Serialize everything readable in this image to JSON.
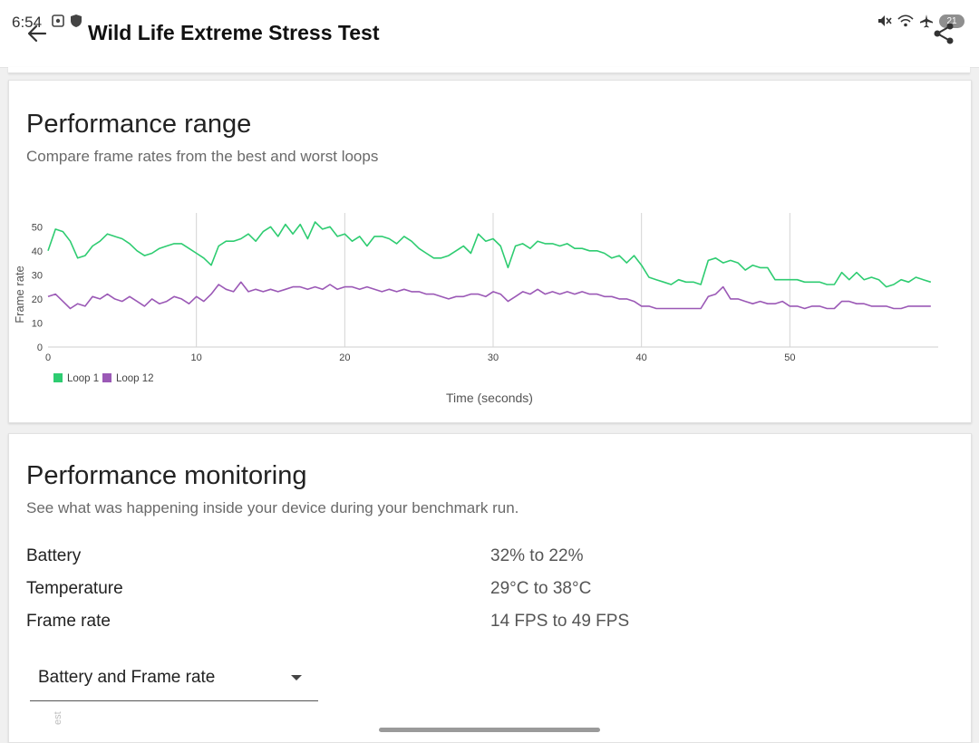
{
  "status_bar": {
    "time": "6:54",
    "battery": "21"
  },
  "app_bar": {
    "title": "Wild Life Extreme Stress Test"
  },
  "performance_range": {
    "title": "Performance range",
    "subtitle": "Compare frame rates from the best and worst loops"
  },
  "chart_data": {
    "type": "line",
    "xlabel": "Time (seconds)",
    "ylabel": "Frame rate",
    "xlim": [
      0,
      60
    ],
    "ylim": [
      0,
      55
    ],
    "x_ticks": [
      "0",
      "10",
      "20",
      "30",
      "40",
      "50"
    ],
    "y_ticks": [
      "0",
      "10",
      "20",
      "30",
      "40",
      "50"
    ],
    "grid": "vertical",
    "legend_position": "bottom-left",
    "series": [
      {
        "name": "Loop 1",
        "color": "#2ecc71",
        "x": [
          0,
          0.5,
          1,
          1.5,
          2,
          2.5,
          3,
          3.5,
          4,
          4.5,
          5,
          5.5,
          6,
          6.5,
          7,
          7.5,
          8,
          8.5,
          9,
          9.5,
          10,
          10.5,
          11,
          11.5,
          12,
          12.5,
          13,
          13.5,
          14,
          14.5,
          15,
          15.5,
          16,
          16.5,
          17,
          17.5,
          18,
          18.5,
          19,
          19.5,
          20,
          20.5,
          21,
          21.5,
          22,
          22.5,
          23,
          23.5,
          24,
          24.5,
          25,
          25.5,
          26,
          26.5,
          27,
          27.5,
          28,
          28.5,
          29,
          29.5,
          30,
          30.5,
          31,
          31.5,
          32,
          32.5,
          33,
          33.5,
          34,
          34.5,
          35,
          35.5,
          36,
          36.5,
          37,
          37.5,
          38,
          38.5,
          39,
          39.5,
          40,
          40.5,
          41,
          41.5,
          42,
          42.5,
          43,
          43.5,
          44,
          44.5,
          45,
          45.5,
          46,
          46.5,
          47,
          47.5,
          48,
          48.5,
          49,
          49.5,
          50,
          50.5,
          51,
          51.5,
          52,
          52.5,
          53,
          53.5,
          54,
          54.5,
          55,
          55.5,
          56,
          56.5,
          57,
          57.5,
          58,
          58.5,
          59,
          59.5
        ],
        "values": [
          40,
          49,
          48,
          44,
          37,
          38,
          42,
          44,
          47,
          46,
          45,
          43,
          40,
          38,
          39,
          41,
          42,
          43,
          43,
          41,
          39,
          37,
          34,
          42,
          44,
          44,
          45,
          47,
          44,
          48,
          50,
          46,
          51,
          47,
          51,
          45,
          52,
          49,
          50,
          46,
          47,
          44,
          46,
          42,
          46,
          46,
          45,
          43,
          46,
          44,
          41,
          39,
          37,
          37,
          38,
          40,
          42,
          39,
          47,
          44,
          45,
          42,
          33,
          42,
          43,
          41,
          44,
          43,
          43,
          42,
          43,
          41,
          41,
          40,
          40,
          39,
          37,
          38,
          35,
          38,
          34,
          29,
          28,
          27,
          26,
          28,
          27,
          27,
          26,
          36,
          37,
          35,
          36,
          35,
          32,
          34,
          33,
          33,
          28,
          28,
          28,
          28,
          27,
          27,
          27,
          26,
          26,
          31,
          28,
          31,
          28,
          29,
          28,
          25,
          26,
          28,
          27,
          29,
          28,
          27
        ],
        "note_max": 52
      },
      {
        "name": "Loop 12",
        "color": "#9b59b6",
        "x": [
          0,
          0.5,
          1,
          1.5,
          2,
          2.5,
          3,
          3.5,
          4,
          4.5,
          5,
          5.5,
          6,
          6.5,
          7,
          7.5,
          8,
          8.5,
          9,
          9.5,
          10,
          10.5,
          11,
          11.5,
          12,
          12.5,
          13,
          13.5,
          14,
          14.5,
          15,
          15.5,
          16,
          16.5,
          17,
          17.5,
          18,
          18.5,
          19,
          19.5,
          20,
          20.5,
          21,
          21.5,
          22,
          22.5,
          23,
          23.5,
          24,
          24.5,
          25,
          25.5,
          26,
          26.5,
          27,
          27.5,
          28,
          28.5,
          29,
          29.5,
          30,
          30.5,
          31,
          31.5,
          32,
          32.5,
          33,
          33.5,
          34,
          34.5,
          35,
          35.5,
          36,
          36.5,
          37,
          37.5,
          38,
          38.5,
          39,
          39.5,
          40,
          40.5,
          41,
          41.5,
          42,
          42.5,
          43,
          43.5,
          44,
          44.5,
          45,
          45.5,
          46,
          46.5,
          47,
          47.5,
          48,
          48.5,
          49,
          49.5,
          50,
          50.5,
          51,
          51.5,
          52,
          52.5,
          53,
          53.5,
          54,
          54.5,
          55,
          55.5,
          56,
          56.5,
          57,
          57.5,
          58,
          58.5,
          59,
          59.5
        ],
        "values": [
          21,
          22,
          19,
          16,
          18,
          17,
          21,
          20,
          22,
          20,
          19,
          21,
          19,
          17,
          20,
          18,
          19,
          21,
          20,
          18,
          21,
          19,
          22,
          26,
          24,
          23,
          27,
          23,
          24,
          23,
          24,
          23,
          24,
          25,
          25,
          24,
          25,
          24,
          26,
          24,
          25,
          25,
          24,
          25,
          24,
          23,
          24,
          23,
          24,
          23,
          23,
          22,
          22,
          21,
          20,
          21,
          21,
          22,
          22,
          21,
          23,
          22,
          19,
          21,
          23,
          22,
          24,
          22,
          23,
          22,
          23,
          22,
          23,
          22,
          22,
          21,
          21,
          20,
          20,
          19,
          17,
          17,
          16,
          16,
          16,
          16,
          16,
          16,
          16,
          21,
          22,
          25,
          20,
          20,
          19,
          18,
          19,
          18,
          18,
          19,
          17,
          17,
          16,
          17,
          17,
          16,
          16,
          19,
          19,
          18,
          18,
          17,
          17,
          17,
          16,
          16,
          17,
          17,
          17,
          17
        ]
      }
    ]
  },
  "performance_monitoring": {
    "title": "Performance monitoring",
    "subtitle": "See what was happening inside your device during your benchmark run.",
    "rows": [
      {
        "label": "Battery",
        "value": "32% to 22%"
      },
      {
        "label": "Temperature",
        "value": "29°C to 38°C"
      },
      {
        "label": "Frame rate",
        "value": "14 FPS to 49 FPS"
      }
    ],
    "dropdown_value": "Battery and Frame rate"
  },
  "cut_text": "est"
}
